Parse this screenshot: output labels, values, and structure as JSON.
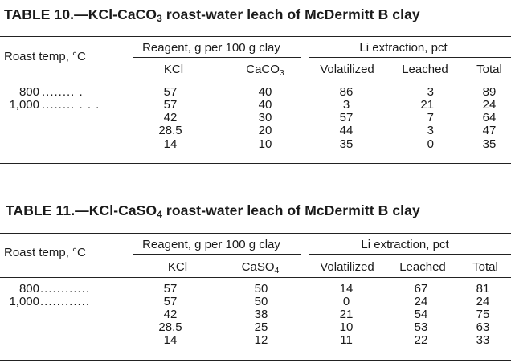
{
  "tables": [
    {
      "title_prefix": "TABLE 10.—KCl-CaCO",
      "title_sub": "3",
      "title_suffix": " roast-water leach of McDermitt B clay",
      "stub_header": "Roast temp, °C",
      "group_reagent": "Reagent, g per 100 g clay",
      "group_li": "Li extraction, pct",
      "col_kcl": "KCl",
      "col_reagent2_base": "CaCO",
      "col_reagent2_sub": "3",
      "col_volatilized": "Volatilized",
      "col_leached": "Leached",
      "col_total": "Total",
      "rows": [
        {
          "temp": "800",
          "temp_dots": "........ .",
          "kcl": "57",
          "r2": "40",
          "vol": "86",
          "lea": "3",
          "tot": "89"
        },
        {
          "temp": "1,000",
          "temp_dots": "........ . . .",
          "kcl": "57",
          "r2": "40",
          "vol": "3",
          "lea": "21",
          "tot": "24"
        },
        {
          "temp": "",
          "temp_dots": "",
          "kcl": "42",
          "r2": "30",
          "vol": "57",
          "lea": "7",
          "tot": "64"
        },
        {
          "temp": "",
          "temp_dots": "",
          "kcl": "28.5",
          "r2": "20",
          "vol": "44",
          "lea": "3",
          "tot": "47"
        },
        {
          "temp": "",
          "temp_dots": "",
          "kcl": "14",
          "r2": "10",
          "vol": "35",
          "lea": "0",
          "tot": "35"
        }
      ]
    },
    {
      "title_prefix": "TABLE 11.—KCl-CaSO",
      "title_sub": "4",
      "title_suffix": " roast-water leach of McDermitt B clay",
      "stub_header": "Roast temp, °C",
      "group_reagent": "Reagent, g per 100 g clay",
      "group_li": "Li extraction, pct",
      "col_kcl": "KCl",
      "col_reagent2_base": "CaSO",
      "col_reagent2_sub": "4",
      "col_volatilized": "Volatilized",
      "col_leached": "Leached",
      "col_total": "Total",
      "rows": [
        {
          "temp": "800",
          "temp_dots": "............",
          "kcl": "57",
          "r2": "50",
          "vol": "14",
          "lea": "67",
          "tot": "81"
        },
        {
          "temp": "1,000",
          "temp_dots": "............",
          "kcl": "57",
          "r2": "50",
          "vol": "0",
          "lea": "24",
          "tot": "24"
        },
        {
          "temp": "",
          "temp_dots": "",
          "kcl": "42",
          "r2": "38",
          "vol": "21",
          "lea": "54",
          "tot": "75"
        },
        {
          "temp": "",
          "temp_dots": "",
          "kcl": "28.5",
          "r2": "25",
          "vol": "10",
          "lea": "53",
          "tot": "63"
        },
        {
          "temp": "",
          "temp_dots": "",
          "kcl": "14",
          "r2": "12",
          "vol": "11",
          "lea": "22",
          "tot": "33"
        }
      ]
    }
  ]
}
